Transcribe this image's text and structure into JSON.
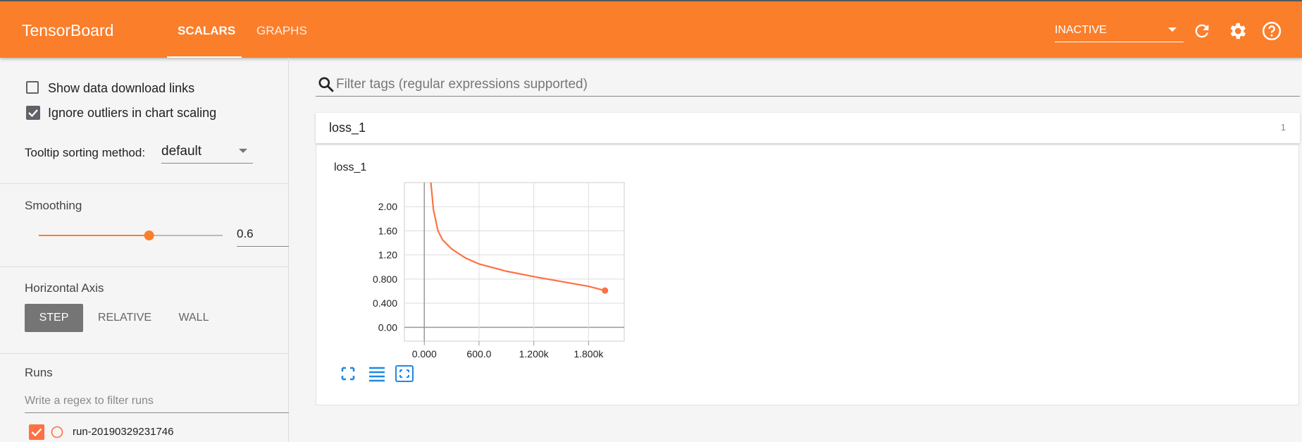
{
  "header": {
    "title": "TensorBoard",
    "tabs": [
      "SCALARS",
      "GRAPHS"
    ],
    "run_status": "INACTIVE"
  },
  "sidebar": {
    "show_download_links": "Show data download links",
    "ignore_outliers": "Ignore outliers in chart scaling",
    "tooltip_label": "Tooltip sorting method:",
    "tooltip_value": "default",
    "smoothing_label": "Smoothing",
    "smoothing_value": 0.6,
    "horizontal_axis_label": "Horizontal Axis",
    "axis_options": [
      "STEP",
      "RELATIVE",
      "WALL"
    ],
    "runs_label": "Runs",
    "runs_filter_placeholder": "Write a regex to filter runs"
  },
  "main": {
    "filter_placeholder": "Filter tags (regular expressions supported)",
    "card": {
      "title": "loss_1",
      "count": 1
    }
  },
  "chart_data": {
    "type": "line",
    "title": "loss_1",
    "x": [
      60,
      100,
      150,
      200,
      300,
      450,
      600,
      900,
      1200,
      1500,
      1800,
      1980
    ],
    "series": [
      {
        "name": "run-20190329231746",
        "color": "#ff7043",
        "values": [
          2.6,
          1.95,
          1.6,
          1.45,
          1.3,
          1.15,
          1.05,
          0.93,
          0.84,
          0.76,
          0.68,
          0.61
        ]
      }
    ],
    "xlim": [
      -218,
      2191
    ],
    "ylim": [
      -0.23,
      2.4
    ],
    "xticks": [
      {
        "value": 0,
        "label": "0.000"
      },
      {
        "value": 600,
        "label": "600.0"
      },
      {
        "value": 1200,
        "label": "1.200k"
      },
      {
        "value": 1800,
        "label": "1.800k"
      }
    ],
    "yticks": [
      {
        "value": 0,
        "label": "0.00"
      },
      {
        "value": 0.4,
        "label": "0.400"
      },
      {
        "value": 0.8,
        "label": "0.800"
      },
      {
        "value": 1.2,
        "label": "1.20"
      },
      {
        "value": 1.6,
        "label": "1.60"
      },
      {
        "value": 2.0,
        "label": "2.00"
      }
    ],
    "grid": true
  }
}
